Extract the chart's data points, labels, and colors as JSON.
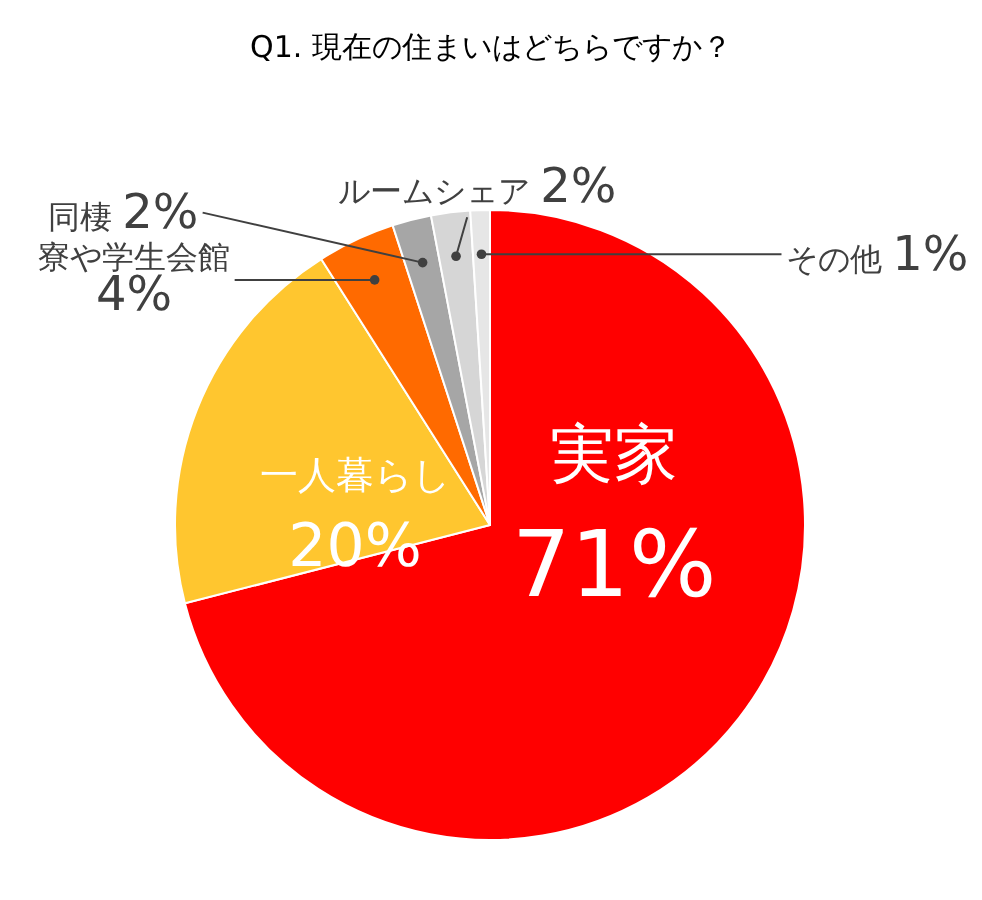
{
  "chart_data": {
    "type": "pie",
    "title": "Q1. 現在の住まいはどちらですか？",
    "categories": [
      "実家",
      "一人暮らし",
      "寮や学生会館",
      "同棲",
      "ルームシェア",
      "その他"
    ],
    "values": [
      71,
      20,
      4,
      2,
      2,
      1
    ],
    "value_labels": [
      "71%",
      "20%",
      "4%",
      "2%",
      "2%",
      "1%"
    ],
    "colors": [
      "#ff0000",
      "#ffc62f",
      "#ff6a00",
      "#a6a6a6",
      "#d6d6d6",
      "#e6e6e6"
    ],
    "legend": false
  }
}
